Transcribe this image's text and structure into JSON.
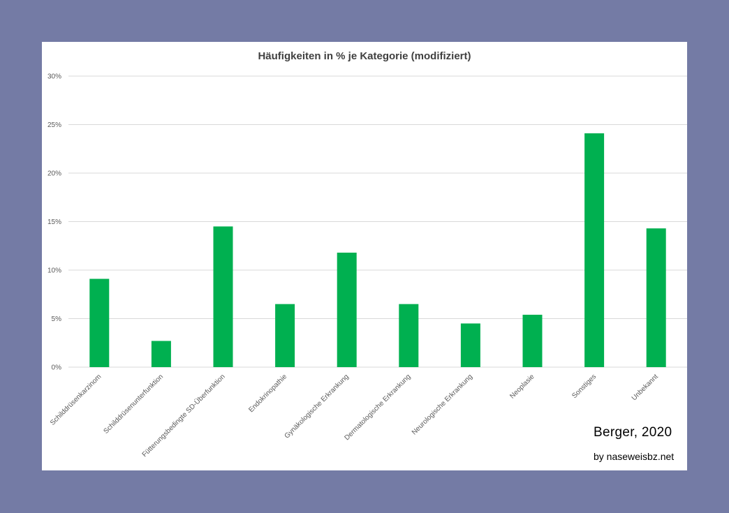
{
  "chart_data": {
    "type": "bar",
    "title": "Häufigkeiten in % je Kategorie (modifiziert)",
    "xlabel": "",
    "ylabel": "",
    "categories": [
      "Schilddrüsenkarzinom",
      "Schilddrüsenunterfunktion",
      "Fütterungsbedingte SD-Überfunktion",
      "Endokrinopathie",
      "Gynäkologische Erkrankung",
      "Dermatologische Erkrankung",
      "Neurologische Erkrankung",
      "Neoplasie",
      "Sonstiges",
      "Unbekannt"
    ],
    "values": [
      9.1,
      2.7,
      14.5,
      6.5,
      11.8,
      6.5,
      4.5,
      5.4,
      24.1,
      14.3
    ],
    "ylim": [
      0,
      30
    ],
    "yticks": [
      0,
      5,
      10,
      15,
      20,
      25,
      30
    ],
    "ytick_labels": [
      "0%",
      "5%",
      "10%",
      "15%",
      "20%",
      "25%",
      "30%"
    ],
    "grid": true,
    "legend": "none",
    "bar_color": "#00b050",
    "grid_color": "#d9d9d9",
    "text_color": "#595959"
  },
  "credit": {
    "author": "Berger,  2020",
    "site": "by naseweisbz.net"
  },
  "colors": {
    "background": "#747ba5",
    "panel": "#ffffff"
  }
}
